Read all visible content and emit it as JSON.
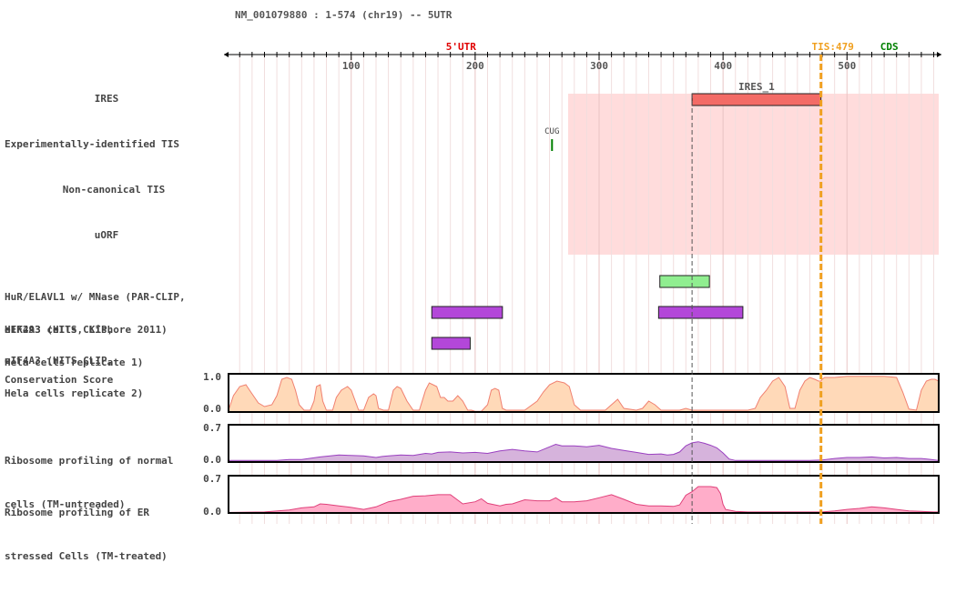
{
  "header": {
    "title": "NM_001079880 : 1-574 (chr19) -- 5UTR"
  },
  "axis": {
    "min": 1,
    "max": 574,
    "ticks": [
      "100",
      "200",
      "300",
      "400",
      "500"
    ],
    "utr_label": "5'UTR",
    "tis_label": "TIS:479",
    "cds_label": "CDS",
    "tis_position": 479
  },
  "colors": {
    "utr": "#e00000",
    "tis": "#f0a020",
    "cds": "#008000",
    "ires_region": "#ffdcdc",
    "ires_bar": "#f36b66",
    "hur": "#90ee90",
    "eif4a3": "#b347d9",
    "conservation": "#ffd9b8",
    "conservation_line": "#f08070",
    "ribo_normal": "#d6b3dc",
    "ribo_normal_line": "#9a40c0",
    "ribo_er": "#ffadc9",
    "ribo_er_line": "#e0407a"
  },
  "tracks": {
    "ires": {
      "label": "IRES",
      "features": [
        {
          "name": "IRES_1",
          "start": 375,
          "end": 479
        }
      ],
      "region": {
        "start": 275,
        "end": 574
      }
    },
    "exp_tis": {
      "label": "Experimentally-identified TIS",
      "features": [
        {
          "name": "CUG",
          "pos": 262
        }
      ]
    },
    "noncanonical_tis": {
      "label": "Non-canonical TIS",
      "features": []
    },
    "uorf": {
      "label": "uORF",
      "features": []
    },
    "hur": {
      "label_line1": "HuR/ELAVL1 w/ MNase (PAR-CLIP,",
      "label_line2": "HEK293 cells, Kishore 2011)",
      "features": [
        {
          "start": 349,
          "end": 389
        }
      ]
    },
    "eif4a3_rep1": {
      "label_line1": "eIF4A3 (HITS CLIP,",
      "label_line2": "Hela cells replicate 1)",
      "features": [
        {
          "start": 165,
          "end": 222
        },
        {
          "start": 348,
          "end": 416
        }
      ]
    },
    "eif4a3_rep2": {
      "label_line1": "eIF4A3 (HITS CLIP,",
      "label_line2": "Hela cells replicate 2)",
      "features": [
        {
          "start": 165,
          "end": 196
        }
      ]
    },
    "conservation": {
      "label": "Conservation Score",
      "ymax_label": "1.0",
      "ymin_label": "0.0",
      "ymax": 1.0,
      "x": [
        1,
        5,
        10,
        15,
        18,
        25,
        30,
        36,
        40,
        44,
        48,
        52,
        55,
        58,
        62,
        67,
        70,
        72,
        75,
        77,
        80,
        85,
        88,
        92,
        97,
        100,
        106,
        110,
        114,
        118,
        120,
        122,
        126,
        130,
        134,
        137,
        140,
        145,
        150,
        155,
        160,
        163,
        166,
        169,
        172,
        175,
        178,
        182,
        186,
        190,
        194,
        197,
        200,
        205,
        210,
        213,
        216,
        219,
        222,
        225,
        230,
        240,
        250,
        255,
        260,
        266,
        272,
        276,
        280,
        285,
        290,
        295,
        305,
        310,
        315,
        320,
        330,
        335,
        340,
        345,
        350,
        355,
        365,
        370,
        375,
        380,
        390,
        400,
        410,
        420,
        426,
        430,
        435,
        440,
        445,
        450,
        454,
        458,
        462,
        466,
        470,
        474,
        477,
        479,
        480,
        482,
        490,
        500,
        510,
        520,
        530,
        540,
        545,
        550,
        556,
        560,
        564,
        568,
        571,
        574
      ],
      "y": [
        0.05,
        0.45,
        0.7,
        0.75,
        0.6,
        0.25,
        0.15,
        0.2,
        0.45,
        0.9,
        0.95,
        0.9,
        0.6,
        0.2,
        0.05,
        0.05,
        0.3,
        0.7,
        0.75,
        0.3,
        0.05,
        0.05,
        0.4,
        0.6,
        0.7,
        0.6,
        0.05,
        0.05,
        0.4,
        0.5,
        0.45,
        0.1,
        0.05,
        0.05,
        0.6,
        0.7,
        0.65,
        0.3,
        0.05,
        0.05,
        0.6,
        0.8,
        0.75,
        0.7,
        0.4,
        0.4,
        0.3,
        0.3,
        0.45,
        0.3,
        0.05,
        0.05,
        0.02,
        0.02,
        0.2,
        0.6,
        0.65,
        0.6,
        0.1,
        0.05,
        0.05,
        0.05,
        0.3,
        0.55,
        0.75,
        0.85,
        0.8,
        0.7,
        0.2,
        0.05,
        0.05,
        0.05,
        0.05,
        0.2,
        0.35,
        0.1,
        0.05,
        0.1,
        0.3,
        0.2,
        0.05,
        0.05,
        0.05,
        0.1,
        0.05,
        0.05,
        0.05,
        0.05,
        0.05,
        0.05,
        0.1,
        0.4,
        0.6,
        0.85,
        0.95,
        0.7,
        0.1,
        0.1,
        0.6,
        0.85,
        0.95,
        0.9,
        0.85,
        0.85,
        0.9,
        0.95,
        0.95,
        0.98,
        0.98,
        0.98,
        0.98,
        0.95,
        0.55,
        0.08,
        0.05,
        0.6,
        0.85,
        0.9,
        0.9,
        0.85
      ]
    },
    "ribo_normal": {
      "label_line1": "Ribosome profiling of normal",
      "label_line2": "cells (TM-untreaded)",
      "ymax_label": "0.7",
      "ymin_label": "0.0",
      "ymax": 0.7,
      "x": [
        1,
        40,
        50,
        60,
        75,
        90,
        100,
        110,
        120,
        125,
        130,
        140,
        150,
        160,
        165,
        170,
        180,
        190,
        200,
        210,
        220,
        230,
        240,
        250,
        260,
        265,
        270,
        280,
        290,
        300,
        310,
        320,
        330,
        340,
        350,
        355,
        360,
        365,
        370,
        375,
        380,
        385,
        390,
        395,
        400,
        405,
        410,
        420,
        430,
        440,
        460,
        470,
        480,
        490,
        500,
        510,
        520,
        530,
        540,
        550,
        560,
        568,
        574
      ],
      "y": [
        0.03,
        0.03,
        0.05,
        0.05,
        0.1,
        0.14,
        0.13,
        0.12,
        0.09,
        0.11,
        0.12,
        0.14,
        0.13,
        0.17,
        0.16,
        0.19,
        0.2,
        0.18,
        0.19,
        0.17,
        0.22,
        0.25,
        0.22,
        0.2,
        0.3,
        0.35,
        0.32,
        0.32,
        0.3,
        0.33,
        0.27,
        0.23,
        0.19,
        0.15,
        0.16,
        0.14,
        0.15,
        0.2,
        0.32,
        0.38,
        0.4,
        0.37,
        0.33,
        0.28,
        0.18,
        0.06,
        0.03,
        0.03,
        0.03,
        0.03,
        0.03,
        0.03,
        0.04,
        0.07,
        0.09,
        0.09,
        0.1,
        0.08,
        0.09,
        0.07,
        0.07,
        0.05,
        0.03
      ]
    },
    "ribo_er": {
      "label_line1": "Ribosome profiling of ER",
      "label_line2": "stressed Cells (TM-treated)",
      "ymax_label": "0.7",
      "ymin_label": "0.0",
      "ymax": 0.7,
      "x": [
        1,
        30,
        50,
        60,
        70,
        75,
        80,
        90,
        100,
        110,
        120,
        130,
        140,
        150,
        160,
        170,
        180,
        190,
        200,
        205,
        210,
        220,
        225,
        230,
        240,
        250,
        260,
        265,
        270,
        280,
        290,
        300,
        310,
        320,
        330,
        340,
        350,
        360,
        365,
        370,
        375,
        380,
        390,
        395,
        398,
        400,
        402,
        410,
        420,
        430,
        440,
        460,
        470,
        480,
        490,
        500,
        510,
        520,
        530,
        540,
        550,
        560,
        570,
        574
      ],
      "y": [
        0.01,
        0.02,
        0.06,
        0.1,
        0.12,
        0.18,
        0.17,
        0.14,
        0.11,
        0.07,
        0.12,
        0.22,
        0.27,
        0.33,
        0.34,
        0.36,
        0.36,
        0.18,
        0.22,
        0.28,
        0.19,
        0.14,
        0.17,
        0.18,
        0.26,
        0.24,
        0.24,
        0.3,
        0.22,
        0.22,
        0.24,
        0.3,
        0.36,
        0.27,
        0.17,
        0.14,
        0.14,
        0.13,
        0.16,
        0.35,
        0.42,
        0.52,
        0.52,
        0.5,
        0.38,
        0.17,
        0.07,
        0.03,
        0.02,
        0.02,
        0.02,
        0.02,
        0.02,
        0.02,
        0.04,
        0.07,
        0.09,
        0.12,
        0.1,
        0.07,
        0.04,
        0.03,
        0.02,
        0.02
      ]
    }
  }
}
